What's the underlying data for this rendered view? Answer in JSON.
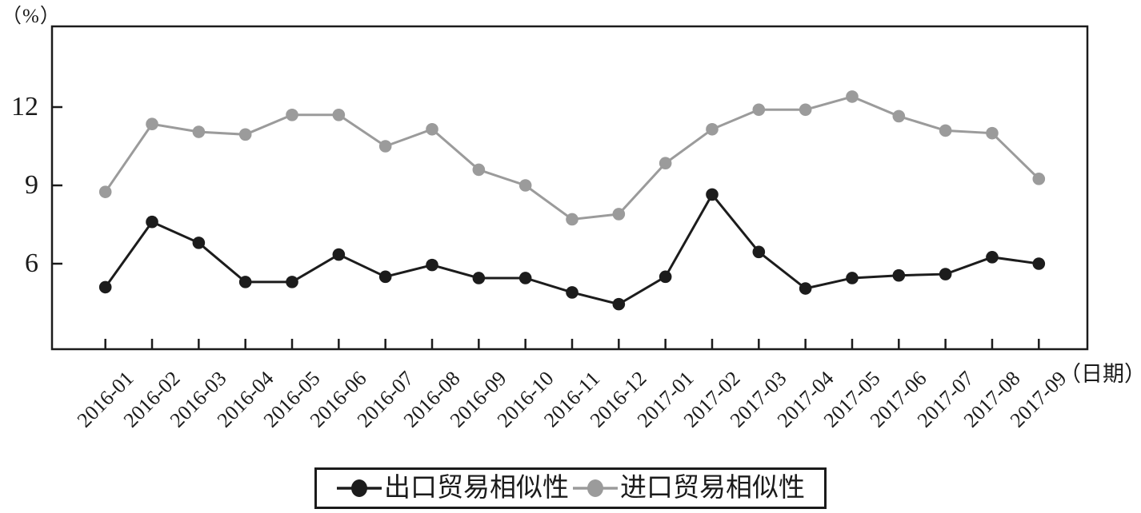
{
  "chart_data": {
    "type": "line",
    "title": "",
    "y_axis_unit_label": "（%）",
    "x_axis_unit_label": "（日期）",
    "categories": [
      "2016-01",
      "2016-02",
      "2016-03",
      "2016-04",
      "2016-05",
      "2016-06",
      "2016-07",
      "2016-08",
      "2016-09",
      "2016-10",
      "2016-11",
      "2016-12",
      "2017-01",
      "2017-02",
      "2017-03",
      "2017-04",
      "2017-05",
      "2017-06",
      "2017-07",
      "2017-08",
      "2017-09"
    ],
    "series": [
      {
        "name": "出口贸易相似性",
        "color": "#1c1c1c",
        "marker": "circle",
        "values": [
          5.1,
          7.6,
          6.8,
          5.3,
          5.3,
          6.35,
          5.5,
          5.95,
          5.45,
          5.45,
          4.9,
          4.45,
          5.5,
          8.65,
          6.45,
          5.05,
          5.45,
          5.55,
          5.6,
          6.25,
          6.0
        ]
      },
      {
        "name": "进口贸易相似性",
        "color": "#9b9b9b",
        "marker": "circle",
        "values": [
          8.75,
          11.35,
          11.05,
          10.95,
          11.7,
          11.7,
          10.5,
          11.15,
          9.6,
          9.0,
          7.7,
          7.9,
          9.85,
          11.15,
          11.9,
          11.9,
          12.4,
          11.65,
          11.1,
          11.0,
          9.25
        ]
      }
    ],
    "yticks": [
      12,
      9,
      6
    ],
    "ylim": [
      2.8,
      15.2
    ],
    "grid": false,
    "legend_position": "bottom-center"
  },
  "legend": {
    "items": [
      {
        "label": "出口贸易相似性"
      },
      {
        "label": "进口贸易相似性"
      }
    ]
  }
}
